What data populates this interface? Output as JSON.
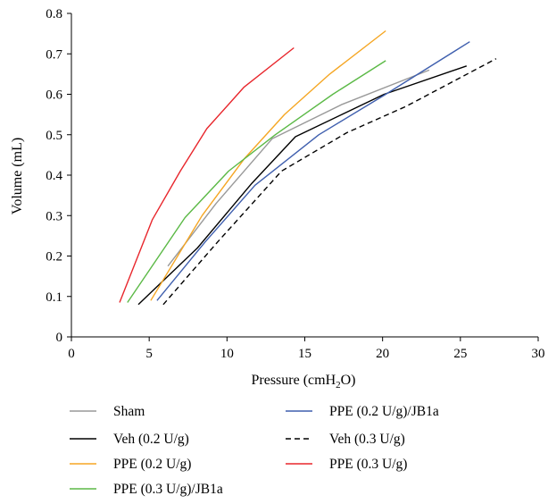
{
  "chart_data": {
    "type": "line",
    "title": "",
    "xlabel": {
      "pre": "Pressure (cmH",
      "sub": "2",
      "post": "O)"
    },
    "ylabel": "Volume (mL)",
    "xlim": [
      0,
      30
    ],
    "ylim": [
      0,
      0.8
    ],
    "xticks": [
      0,
      5,
      10,
      15,
      20,
      25,
      30
    ],
    "yticks": [
      0,
      0.1,
      0.2,
      0.3,
      0.4,
      0.5,
      0.6,
      0.7,
      0.8
    ],
    "xtick_labels": [
      "0",
      "5",
      "10",
      "15",
      "20",
      "25",
      "30"
    ],
    "ytick_labels": [
      "0",
      "0.1",
      "0.2",
      "0.3",
      "0.4",
      "0.5",
      "0.6",
      "0.7",
      "0.8"
    ],
    "grid": false,
    "legend_position": "bottom",
    "series": [
      {
        "name": "Sham",
        "color": "#999999",
        "dash": false,
        "points": [
          [
            6.2,
            0.175
          ],
          [
            9.3,
            0.33
          ],
          [
            12.9,
            0.49
          ],
          [
            17.4,
            0.575
          ],
          [
            23.0,
            0.66
          ]
        ]
      },
      {
        "name": "Veh (0.2 U/g)",
        "color": "#000000",
        "dash": false,
        "points": [
          [
            4.3,
            0.08
          ],
          [
            8.1,
            0.22
          ],
          [
            11.6,
            0.38
          ],
          [
            14.4,
            0.495
          ],
          [
            20.1,
            0.6
          ],
          [
            25.4,
            0.67
          ]
        ]
      },
      {
        "name": "PPE (0.2 U/g)",
        "color": "#f5a623",
        "dash": false,
        "points": [
          [
            5.1,
            0.09
          ],
          [
            8.4,
            0.3
          ],
          [
            11.1,
            0.44
          ],
          [
            13.7,
            0.55
          ],
          [
            16.6,
            0.65
          ],
          [
            20.2,
            0.757
          ]
        ]
      },
      {
        "name": "PPE (0.3 U/g)/JB1a",
        "color": "#5bb946",
        "dash": false,
        "points": [
          [
            3.6,
            0.085
          ],
          [
            7.3,
            0.295
          ],
          [
            10.1,
            0.41
          ],
          [
            13.1,
            0.5
          ],
          [
            16.8,
            0.6
          ],
          [
            20.2,
            0.683
          ]
        ]
      },
      {
        "name": "PPE (0.2 U/g)/JB1a",
        "color": "#3f5fae",
        "dash": false,
        "points": [
          [
            5.5,
            0.09
          ],
          [
            8.6,
            0.235
          ],
          [
            11.8,
            0.375
          ],
          [
            15.9,
            0.5
          ],
          [
            20.2,
            0.6
          ],
          [
            25.6,
            0.73
          ]
        ]
      },
      {
        "name": "Veh (0.3 U/g)",
        "color": "#000000",
        "dash": true,
        "points": [
          [
            5.9,
            0.08
          ],
          [
            9.4,
            0.235
          ],
          [
            13.5,
            0.41
          ],
          [
            17.7,
            0.505
          ],
          [
            21.5,
            0.57
          ],
          [
            27.3,
            0.688
          ]
        ]
      },
      {
        "name": "PPE (0.3 U/g)",
        "color": "#e8262c",
        "dash": false,
        "points": [
          [
            3.1,
            0.085
          ],
          [
            5.2,
            0.29
          ],
          [
            7.0,
            0.41
          ],
          [
            8.7,
            0.515
          ],
          [
            11.1,
            0.618
          ],
          [
            14.3,
            0.715
          ]
        ]
      }
    ]
  }
}
